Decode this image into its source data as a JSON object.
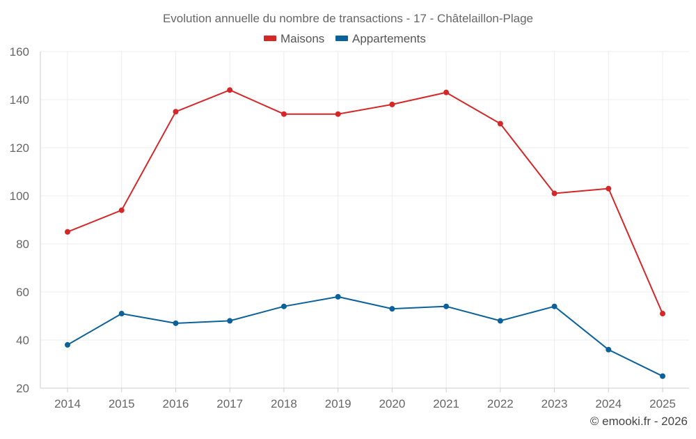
{
  "chart_data": {
    "type": "line",
    "title": "Evolution annuelle du nombre de transactions - 17 - Châtelaillon-Plage",
    "categories": [
      "2014",
      "2015",
      "2016",
      "2017",
      "2018",
      "2019",
      "2020",
      "2021",
      "2022",
      "2023",
      "2024",
      "2025"
    ],
    "series": [
      {
        "name": "Maisons",
        "color": "#d62728",
        "values": [
          85,
          94,
          135,
          144,
          134,
          134,
          138,
          143,
          130,
          101,
          103,
          51
        ]
      },
      {
        "name": "Appartements",
        "color": "#0b6199",
        "values": [
          38,
          51,
          47,
          48,
          54,
          58,
          53,
          54,
          48,
          54,
          36,
          25
        ]
      }
    ],
    "ylim": [
      20,
      160
    ],
    "yticks": [
      "20",
      "40",
      "60",
      "80",
      "100",
      "120",
      "140",
      "160"
    ],
    "xlabel": "",
    "ylabel": "",
    "grid": true,
    "legend_position": "top-center"
  },
  "credit": "© emooki.fr - 2026"
}
